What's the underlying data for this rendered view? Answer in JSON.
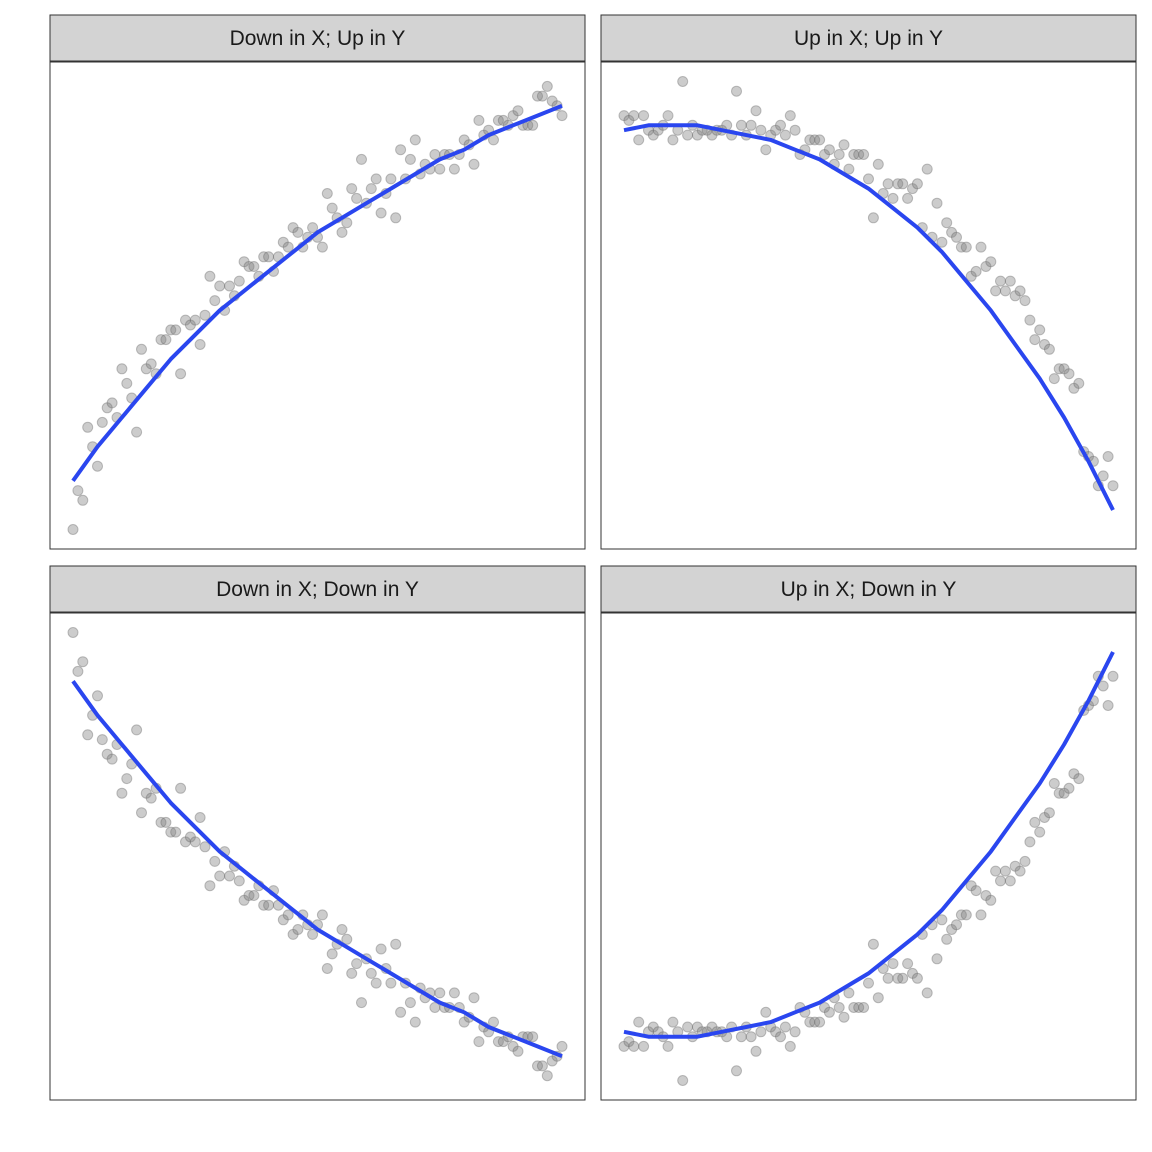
{
  "chart_data": [
    {
      "type": "scatter",
      "title": "Down in X; Up in Y",
      "xlim": [
        0,
        1
      ],
      "ylim": [
        0,
        1
      ],
      "series": [
        {
          "role": "points",
          "x": [
            0.0,
            0.01,
            0.02,
            0.03,
            0.04,
            0.05,
            0.06,
            0.07,
            0.08,
            0.09,
            0.1,
            0.11,
            0.12,
            0.13,
            0.14,
            0.15,
            0.16,
            0.17,
            0.18,
            0.19,
            0.2,
            0.21,
            0.22,
            0.23,
            0.24,
            0.25,
            0.26,
            0.27,
            0.28,
            0.29,
            0.3,
            0.31,
            0.32,
            0.33,
            0.34,
            0.35,
            0.36,
            0.37,
            0.38,
            0.39,
            0.4,
            0.41,
            0.42,
            0.43,
            0.44,
            0.45,
            0.46,
            0.47,
            0.48,
            0.49,
            0.5,
            0.51,
            0.52,
            0.53,
            0.54,
            0.55,
            0.56,
            0.57,
            0.58,
            0.59,
            0.6,
            0.61,
            0.62,
            0.63,
            0.64,
            0.65,
            0.66,
            0.67,
            0.68,
            0.69,
            0.7,
            0.71,
            0.72,
            0.73,
            0.74,
            0.75,
            0.76,
            0.77,
            0.78,
            0.79,
            0.8,
            0.81,
            0.82,
            0.83,
            0.84,
            0.85,
            0.86,
            0.87,
            0.88,
            0.89,
            0.9,
            0.91,
            0.92,
            0.93,
            0.94,
            0.95,
            0.96,
            0.97,
            0.98,
            0.99,
            1.0
          ],
          "y": [
            0.04,
            0.12,
            0.1,
            0.25,
            0.21,
            0.17,
            0.26,
            0.29,
            0.3,
            0.27,
            0.37,
            0.34,
            0.31,
            0.24,
            0.41,
            0.37,
            0.38,
            0.36,
            0.43,
            0.43,
            0.45,
            0.45,
            0.36,
            0.47,
            0.46,
            0.47,
            0.42,
            0.48,
            0.56,
            0.51,
            0.54,
            0.49,
            0.54,
            0.52,
            0.55,
            0.59,
            0.58,
            0.58,
            0.56,
            0.6,
            0.6,
            0.57,
            0.6,
            0.63,
            0.62,
            0.66,
            0.65,
            0.62,
            0.64,
            0.66,
            0.64,
            0.62,
            0.73,
            0.7,
            0.68,
            0.65,
            0.67,
            0.74,
            0.72,
            0.8,
            0.71,
            0.74,
            0.76,
            0.69,
            0.73,
            0.76,
            0.68,
            0.82,
            0.76,
            0.8,
            0.84,
            0.77,
            0.79,
            0.78,
            0.81,
            0.78,
            0.81,
            0.81,
            0.78,
            0.81,
            0.84,
            0.83,
            0.79,
            0.88,
            0.85,
            0.86,
            0.84,
            0.88,
            0.88,
            0.87,
            0.89,
            0.9,
            0.87,
            0.87,
            0.87,
            0.93,
            0.93,
            0.95,
            0.92,
            0.91,
            0.89
          ]
        },
        {
          "role": "smooth",
          "x": [
            0.0,
            0.05,
            0.1,
            0.15,
            0.2,
            0.25,
            0.3,
            0.35,
            0.4,
            0.45,
            0.5,
            0.55,
            0.6,
            0.65,
            0.7,
            0.75,
            0.8,
            0.85,
            0.9,
            0.95,
            1.0
          ],
          "y": [
            0.14,
            0.21,
            0.27,
            0.33,
            0.39,
            0.44,
            0.49,
            0.53,
            0.57,
            0.61,
            0.65,
            0.68,
            0.71,
            0.74,
            0.77,
            0.8,
            0.82,
            0.85,
            0.87,
            0.89,
            0.91
          ]
        }
      ]
    },
    {
      "type": "scatter",
      "title": "Up in X; Up in Y",
      "xlim": [
        0,
        1
      ],
      "ylim": [
        0,
        1
      ],
      "series": [
        {
          "role": "points",
          "x": [
            0.0,
            0.01,
            0.02,
            0.03,
            0.04,
            0.05,
            0.06,
            0.07,
            0.08,
            0.09,
            0.1,
            0.11,
            0.12,
            0.13,
            0.14,
            0.15,
            0.16,
            0.17,
            0.18,
            0.19,
            0.2,
            0.21,
            0.22,
            0.23,
            0.24,
            0.25,
            0.26,
            0.27,
            0.28,
            0.29,
            0.3,
            0.31,
            0.32,
            0.33,
            0.34,
            0.35,
            0.36,
            0.37,
            0.38,
            0.39,
            0.4,
            0.41,
            0.42,
            0.43,
            0.44,
            0.45,
            0.46,
            0.47,
            0.48,
            0.49,
            0.5,
            0.51,
            0.52,
            0.53,
            0.54,
            0.55,
            0.56,
            0.57,
            0.58,
            0.59,
            0.6,
            0.61,
            0.62,
            0.63,
            0.64,
            0.65,
            0.66,
            0.67,
            0.68,
            0.69,
            0.7,
            0.71,
            0.72,
            0.73,
            0.74,
            0.75,
            0.76,
            0.77,
            0.78,
            0.79,
            0.8,
            0.81,
            0.82,
            0.83,
            0.84,
            0.85,
            0.86,
            0.87,
            0.88,
            0.89,
            0.9,
            0.91,
            0.92,
            0.93,
            0.94,
            0.95,
            0.96,
            0.97,
            0.98,
            0.99,
            1.0
          ],
          "y": [
            0.89,
            0.88,
            0.89,
            0.84,
            0.89,
            0.86,
            0.85,
            0.86,
            0.87,
            0.89,
            0.84,
            0.86,
            0.96,
            0.85,
            0.87,
            0.85,
            0.86,
            0.86,
            0.85,
            0.86,
            0.86,
            0.87,
            0.85,
            0.94,
            0.87,
            0.85,
            0.87,
            0.9,
            0.86,
            0.82,
            0.85,
            0.86,
            0.87,
            0.85,
            0.89,
            0.86,
            0.81,
            0.82,
            0.84,
            0.84,
            0.84,
            0.81,
            0.82,
            0.79,
            0.81,
            0.83,
            0.78,
            0.81,
            0.81,
            0.81,
            0.76,
            0.68,
            0.79,
            0.73,
            0.75,
            0.72,
            0.75,
            0.75,
            0.72,
            0.74,
            0.75,
            0.66,
            0.78,
            0.64,
            0.71,
            0.63,
            0.67,
            0.65,
            0.64,
            0.62,
            0.62,
            0.56,
            0.57,
            0.62,
            0.58,
            0.59,
            0.53,
            0.55,
            0.53,
            0.55,
            0.52,
            0.53,
            0.51,
            0.47,
            0.43,
            0.45,
            0.42,
            0.41,
            0.35,
            0.37,
            0.37,
            0.36,
            0.33,
            0.34,
            0.2,
            0.19,
            0.18,
            0.13,
            0.15,
            0.19,
            0.13
          ]
        },
        {
          "role": "smooth",
          "x": [
            0.0,
            0.05,
            0.1,
            0.15,
            0.2,
            0.25,
            0.3,
            0.35,
            0.4,
            0.45,
            0.5,
            0.55,
            0.6,
            0.65,
            0.7,
            0.75,
            0.8,
            0.85,
            0.9,
            0.95,
            1.0
          ],
          "y": [
            0.86,
            0.87,
            0.87,
            0.87,
            0.86,
            0.85,
            0.84,
            0.82,
            0.8,
            0.77,
            0.74,
            0.7,
            0.66,
            0.61,
            0.55,
            0.49,
            0.42,
            0.35,
            0.27,
            0.18,
            0.08
          ]
        }
      ]
    },
    {
      "type": "scatter",
      "title": "Down in X; Down in Y",
      "xlim": [
        0,
        1
      ],
      "ylim": [
        0,
        1
      ],
      "series": [
        {
          "role": "points",
          "x": [
            0.0,
            0.01,
            0.02,
            0.03,
            0.04,
            0.05,
            0.06,
            0.07,
            0.08,
            0.09,
            0.1,
            0.11,
            0.12,
            0.13,
            0.14,
            0.15,
            0.16,
            0.17,
            0.18,
            0.19,
            0.2,
            0.21,
            0.22,
            0.23,
            0.24,
            0.25,
            0.26,
            0.27,
            0.28,
            0.29,
            0.3,
            0.31,
            0.32,
            0.33,
            0.34,
            0.35,
            0.36,
            0.37,
            0.38,
            0.39,
            0.4,
            0.41,
            0.42,
            0.43,
            0.44,
            0.45,
            0.46,
            0.47,
            0.48,
            0.49,
            0.5,
            0.51,
            0.52,
            0.53,
            0.54,
            0.55,
            0.56,
            0.57,
            0.58,
            0.59,
            0.6,
            0.61,
            0.62,
            0.63,
            0.64,
            0.65,
            0.66,
            0.67,
            0.68,
            0.69,
            0.7,
            0.71,
            0.72,
            0.73,
            0.74,
            0.75,
            0.76,
            0.77,
            0.78,
            0.79,
            0.8,
            0.81,
            0.82,
            0.83,
            0.84,
            0.85,
            0.86,
            0.87,
            0.88,
            0.89,
            0.9,
            0.91,
            0.92,
            0.93,
            0.94,
            0.95,
            0.96,
            0.97,
            0.98,
            0.99,
            1.0
          ],
          "y": [
            0.96,
            0.88,
            0.9,
            0.75,
            0.79,
            0.83,
            0.74,
            0.71,
            0.7,
            0.73,
            0.63,
            0.66,
            0.69,
            0.76,
            0.59,
            0.63,
            0.62,
            0.64,
            0.57,
            0.57,
            0.55,
            0.55,
            0.64,
            0.53,
            0.54,
            0.53,
            0.58,
            0.52,
            0.44,
            0.49,
            0.46,
            0.51,
            0.46,
            0.48,
            0.45,
            0.41,
            0.42,
            0.42,
            0.44,
            0.4,
            0.4,
            0.43,
            0.4,
            0.37,
            0.38,
            0.34,
            0.35,
            0.38,
            0.36,
            0.34,
            0.36,
            0.38,
            0.27,
            0.3,
            0.32,
            0.35,
            0.33,
            0.26,
            0.28,
            0.2,
            0.29,
            0.26,
            0.24,
            0.31,
            0.27,
            0.24,
            0.32,
            0.18,
            0.24,
            0.2,
            0.16,
            0.23,
            0.21,
            0.22,
            0.19,
            0.22,
            0.19,
            0.19,
            0.22,
            0.19,
            0.16,
            0.17,
            0.21,
            0.12,
            0.15,
            0.14,
            0.16,
            0.12,
            0.12,
            0.13,
            0.11,
            0.1,
            0.13,
            0.13,
            0.13,
            0.07,
            0.07,
            0.05,
            0.08,
            0.09,
            0.11
          ]
        },
        {
          "role": "smooth",
          "x": [
            0.0,
            0.05,
            0.1,
            0.15,
            0.2,
            0.25,
            0.3,
            0.35,
            0.4,
            0.45,
            0.5,
            0.55,
            0.6,
            0.65,
            0.7,
            0.75,
            0.8,
            0.85,
            0.9,
            0.95,
            1.0
          ],
          "y": [
            0.86,
            0.79,
            0.73,
            0.67,
            0.61,
            0.56,
            0.51,
            0.47,
            0.43,
            0.39,
            0.35,
            0.32,
            0.29,
            0.26,
            0.23,
            0.2,
            0.18,
            0.15,
            0.13,
            0.11,
            0.09
          ]
        }
      ]
    },
    {
      "type": "scatter",
      "title": "Up in X; Down in Y",
      "xlim": [
        0,
        1
      ],
      "ylim": [
        0,
        1
      ],
      "series": [
        {
          "role": "points",
          "x": [
            0.0,
            0.01,
            0.02,
            0.03,
            0.04,
            0.05,
            0.06,
            0.07,
            0.08,
            0.09,
            0.1,
            0.11,
            0.12,
            0.13,
            0.14,
            0.15,
            0.16,
            0.17,
            0.18,
            0.19,
            0.2,
            0.21,
            0.22,
            0.23,
            0.24,
            0.25,
            0.26,
            0.27,
            0.28,
            0.29,
            0.3,
            0.31,
            0.32,
            0.33,
            0.34,
            0.35,
            0.36,
            0.37,
            0.38,
            0.39,
            0.4,
            0.41,
            0.42,
            0.43,
            0.44,
            0.45,
            0.46,
            0.47,
            0.48,
            0.49,
            0.5,
            0.51,
            0.52,
            0.53,
            0.54,
            0.55,
            0.56,
            0.57,
            0.58,
            0.59,
            0.6,
            0.61,
            0.62,
            0.63,
            0.64,
            0.65,
            0.66,
            0.67,
            0.68,
            0.69,
            0.7,
            0.71,
            0.72,
            0.73,
            0.74,
            0.75,
            0.76,
            0.77,
            0.78,
            0.79,
            0.8,
            0.81,
            0.82,
            0.83,
            0.84,
            0.85,
            0.86,
            0.87,
            0.88,
            0.89,
            0.9,
            0.91,
            0.92,
            0.93,
            0.94,
            0.95,
            0.96,
            0.97,
            0.98,
            0.99,
            1.0
          ],
          "y": [
            0.11,
            0.12,
            0.11,
            0.16,
            0.11,
            0.14,
            0.15,
            0.14,
            0.13,
            0.11,
            0.16,
            0.14,
            0.04,
            0.15,
            0.13,
            0.15,
            0.14,
            0.14,
            0.15,
            0.14,
            0.14,
            0.13,
            0.15,
            0.06,
            0.13,
            0.15,
            0.13,
            0.1,
            0.14,
            0.18,
            0.15,
            0.14,
            0.13,
            0.15,
            0.11,
            0.14,
            0.19,
            0.18,
            0.16,
            0.16,
            0.16,
            0.19,
            0.18,
            0.21,
            0.19,
            0.17,
            0.22,
            0.19,
            0.19,
            0.19,
            0.24,
            0.32,
            0.21,
            0.27,
            0.25,
            0.28,
            0.25,
            0.25,
            0.28,
            0.26,
            0.25,
            0.34,
            0.22,
            0.36,
            0.29,
            0.37,
            0.33,
            0.35,
            0.36,
            0.38,
            0.38,
            0.44,
            0.43,
            0.38,
            0.42,
            0.41,
            0.47,
            0.45,
            0.47,
            0.45,
            0.48,
            0.47,
            0.49,
            0.53,
            0.57,
            0.55,
            0.58,
            0.59,
            0.65,
            0.63,
            0.63,
            0.64,
            0.67,
            0.66,
            0.8,
            0.81,
            0.82,
            0.87,
            0.85,
            0.81,
            0.87
          ]
        },
        {
          "role": "smooth",
          "x": [
            0.0,
            0.05,
            0.1,
            0.15,
            0.2,
            0.25,
            0.3,
            0.35,
            0.4,
            0.45,
            0.5,
            0.55,
            0.6,
            0.65,
            0.7,
            0.75,
            0.8,
            0.85,
            0.9,
            0.95,
            1.0
          ],
          "y": [
            0.14,
            0.13,
            0.13,
            0.13,
            0.14,
            0.15,
            0.16,
            0.18,
            0.2,
            0.23,
            0.26,
            0.3,
            0.34,
            0.39,
            0.45,
            0.51,
            0.58,
            0.65,
            0.73,
            0.82,
            0.92
          ]
        }
      ]
    }
  ],
  "style": {
    "point_color": "#7f7f7f",
    "point_stroke": "#666666",
    "point_opacity": 0.4,
    "line_color": "#2a46ef",
    "strip_fill": "#d3d3d3",
    "border_color": "#333333"
  }
}
